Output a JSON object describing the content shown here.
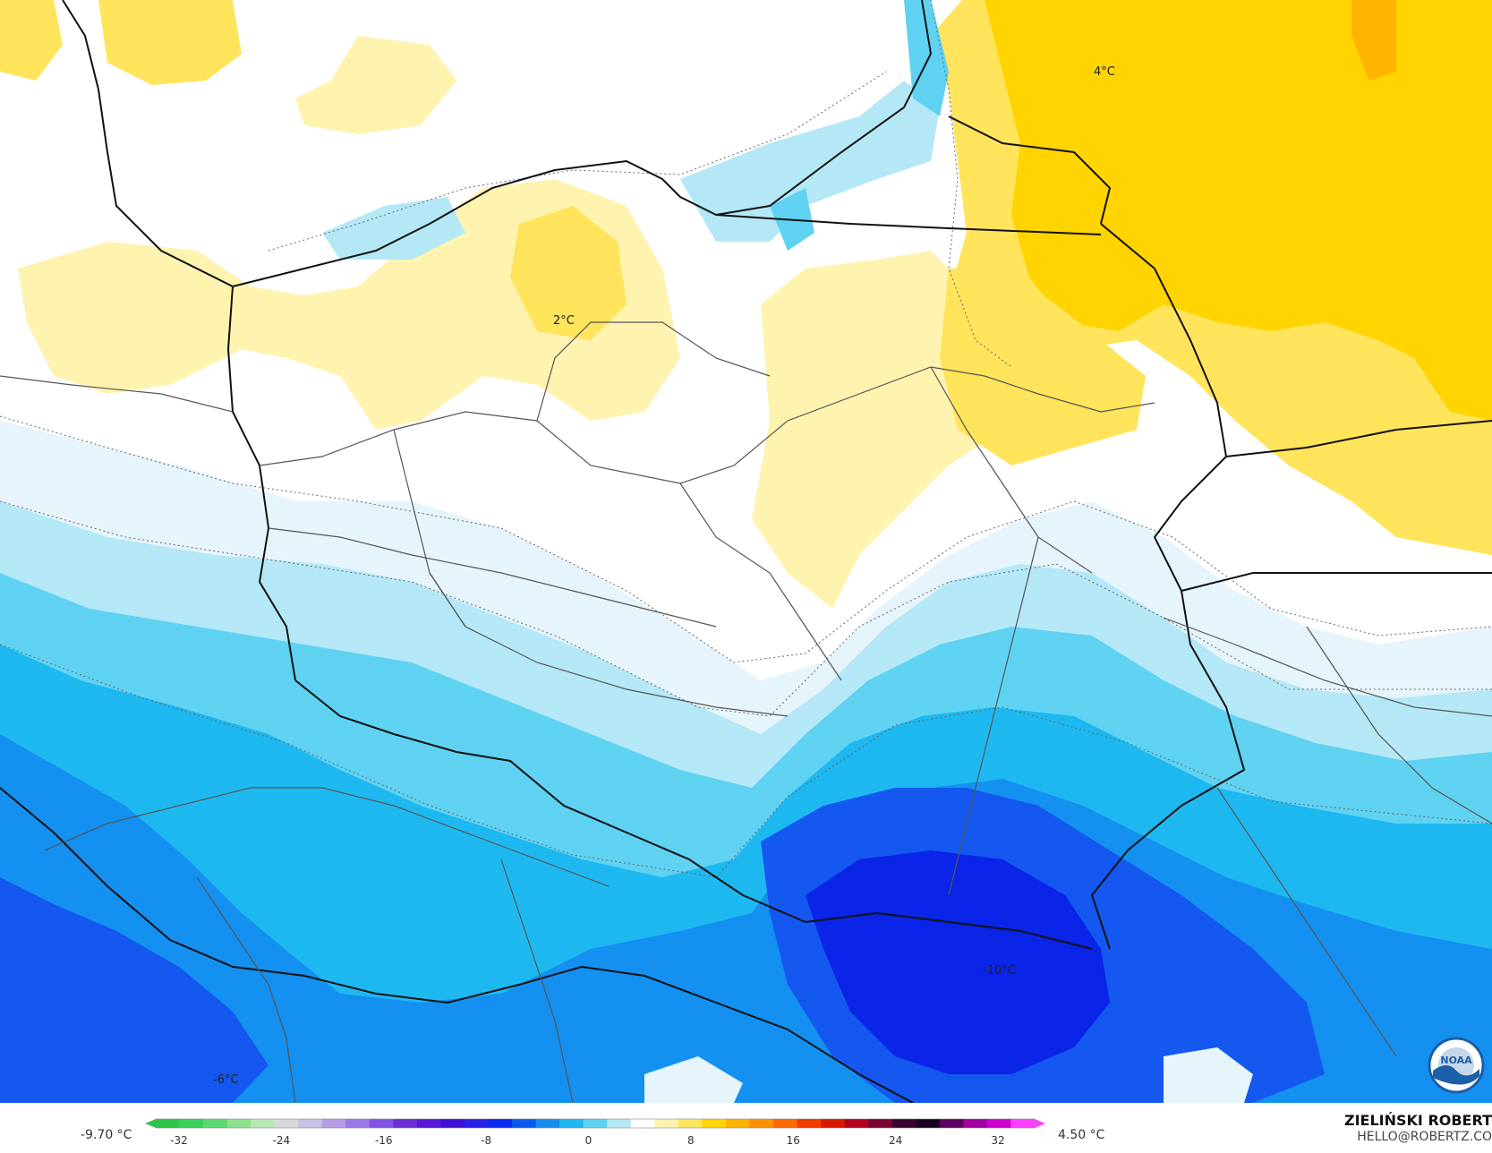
{
  "map": {
    "contour_labels": [
      "4°C",
      "2°C",
      "-10°C",
      "-6°C"
    ],
    "fill_colors": {
      "gold": "#ffd400",
      "yellow": "#ffe45c",
      "pale_yellow": "#fff3b0",
      "white": "#ffffff",
      "ice": "#e6f5fb",
      "light_cyan": "#b5e8f7",
      "cyan": "#5fd2f2",
      "sky": "#1eb8f0",
      "blue": "#1490f0",
      "deep_blue": "#1458f0",
      "dark_blue": "#0a24e8"
    },
    "logo": "noaa-logo"
  },
  "colorbar": {
    "min_label": "-9.70 °C",
    "max_label": "4.50 °C",
    "ticks": [
      "-32",
      "-24",
      "-16",
      "-8",
      "0",
      "8",
      "16",
      "24",
      "32"
    ],
    "range": [
      -32,
      32
    ],
    "colors": [
      "#2dc64a",
      "#3bd15a",
      "#5bd86f",
      "#8de08f",
      "#b7e8b4",
      "#d8d8d8",
      "#c8c0e6",
      "#b59be6",
      "#9b78e6",
      "#8152e0",
      "#6a2ed6",
      "#5818d6",
      "#3f12d6",
      "#2a22e8",
      "#0a2af0",
      "#0a5af0",
      "#148ff0",
      "#1eb8f0",
      "#5fd2f2",
      "#b5e8f7",
      "#ffffff",
      "#fff3b0",
      "#ffe45c",
      "#ffd400",
      "#ffb400",
      "#ff9000",
      "#ff6a00",
      "#f03c00",
      "#d81800",
      "#b40020",
      "#7a0030",
      "#3a0030",
      "#1a0020",
      "#5a0060",
      "#a000a0",
      "#d000d0",
      "#ff40ff"
    ],
    "min_marker_color": "#2dc64a",
    "max_marker_color": "#ff40ff"
  },
  "credits": {
    "author": "ZIELIŃSKI ROBERT",
    "email": "HELLO@ROBERTZ.CO"
  }
}
